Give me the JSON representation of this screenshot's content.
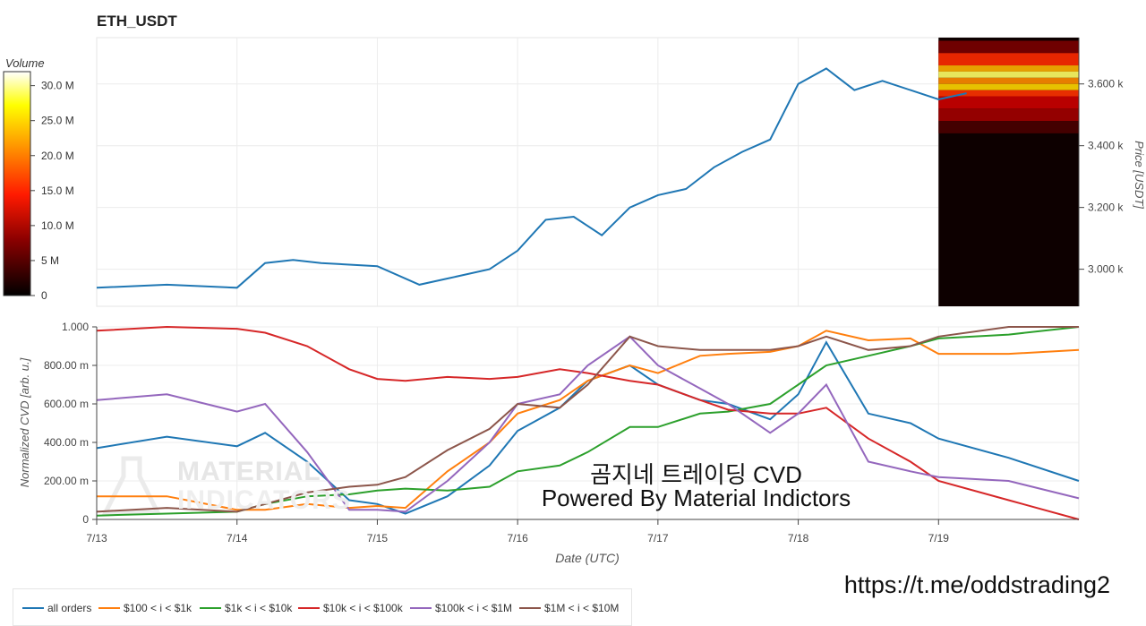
{
  "title": "ETH_USDT",
  "colorbar": {
    "label": "Volume",
    "ticks": [
      "30.0 M",
      "25.0 M",
      "20.0 M",
      "15.0 M",
      "10.0 M",
      "5 M",
      "0"
    ]
  },
  "overlay": {
    "line1": "곰지네 트레이딩 CVD",
    "line2": "Powered By Material Indictors",
    "url": "https://t.me/oddstrading2"
  },
  "watermark": {
    "line1": "MATERIAL",
    "line2": "INDICATORS"
  },
  "colors": {
    "all_orders": "#1f77b4",
    "s100_1k": "#ff7f0e",
    "s1k_10k": "#2ca02c",
    "s10k_100k": "#d62728",
    "s100k_1m": "#9467bd",
    "s1m_10m": "#8c564b"
  },
  "legend": {
    "items": [
      {
        "key": "all_orders",
        "label": "all orders"
      },
      {
        "key": "s100_1k",
        "label": "$100 < i < $1k"
      },
      {
        "key": "s1k_10k",
        "label": "$1k < i < $10k"
      },
      {
        "key": "s10k_100k",
        "label": "$10k < i < $100k"
      },
      {
        "key": "s100k_1m",
        "label": "$100k < i < $1M"
      },
      {
        "key": "s1m_10m",
        "label": "$1M < i < $10M"
      }
    ]
  },
  "chart_data": [
    {
      "type": "line",
      "ylabel": "Price [USDT]",
      "ylim": [
        2880,
        3750
      ],
      "yticks": [
        3000,
        3200,
        3400,
        3600
      ],
      "ytick_labels": [
        "3.000 k",
        "3.200 k",
        "3.400 k",
        "3.600 k"
      ],
      "xlim": [
        0,
        7
      ],
      "x": [
        0.0,
        0.5,
        1.0,
        1.2,
        1.4,
        1.6,
        2.0,
        2.3,
        2.5,
        2.8,
        3.0,
        3.2,
        3.4,
        3.6,
        3.8,
        4.0,
        4.2,
        4.4,
        4.6,
        4.8,
        5.0,
        5.2,
        5.4,
        5.6,
        5.8,
        6.0,
        6.2
      ],
      "series": [
        {
          "key": "all_orders",
          "values": [
            2940,
            2950,
            2940,
            3020,
            3030,
            3020,
            3010,
            2950,
            2970,
            3000,
            3060,
            3160,
            3170,
            3110,
            3200,
            3240,
            3260,
            3330,
            3380,
            3420,
            3600,
            3650,
            3580,
            3610,
            3580,
            3550,
            3570
          ]
        }
      ],
      "heatmap": {
        "x_range": [
          6.0,
          7.0
        ],
        "volume_range": [
          0,
          30000000
        ]
      }
    },
    {
      "type": "line",
      "xlabel": "Date (UTC)",
      "ylabel": "Normalized CVD [arb. u.]",
      "ylim": [
        0,
        1
      ],
      "yticks": [
        0,
        0.2,
        0.4,
        0.6,
        0.8,
        1.0
      ],
      "ytick_labels": [
        "0",
        "200.00 m",
        "400.00 m",
        "600.00 m",
        "800.00 m",
        "1.000"
      ],
      "xlim": [
        0,
        7
      ],
      "xticks": [
        0,
        1,
        2,
        3,
        4,
        5,
        6
      ],
      "xtick_labels": [
        "7/13",
        "7/14",
        "7/15",
        "7/16",
        "7/17",
        "7/18",
        "7/19"
      ],
      "x": [
        0.0,
        0.5,
        1.0,
        1.2,
        1.5,
        1.8,
        2.0,
        2.2,
        2.5,
        2.8,
        3.0,
        3.3,
        3.5,
        3.8,
        4.0,
        4.3,
        4.5,
        4.8,
        5.0,
        5.2,
        5.5,
        5.8,
        6.0,
        6.5,
        7.0
      ],
      "series": [
        {
          "key": "all_orders",
          "values": [
            0.37,
            0.43,
            0.38,
            0.45,
            0.3,
            0.1,
            0.08,
            0.03,
            0.12,
            0.28,
            0.46,
            0.58,
            0.72,
            0.8,
            0.7,
            0.62,
            0.6,
            0.52,
            0.65,
            0.92,
            0.55,
            0.5,
            0.42,
            0.32,
            0.2
          ]
        },
        {
          "key": "s100_1k",
          "values": [
            0.12,
            0.12,
            0.05,
            0.05,
            0.08,
            0.06,
            0.07,
            0.06,
            0.25,
            0.4,
            0.55,
            0.62,
            0.72,
            0.8,
            0.76,
            0.85,
            0.86,
            0.87,
            0.9,
            0.98,
            0.93,
            0.94,
            0.86,
            0.86,
            0.88
          ]
        },
        {
          "key": "s1k_10k",
          "values": [
            0.02,
            0.03,
            0.04,
            0.08,
            0.12,
            0.13,
            0.15,
            0.16,
            0.15,
            0.17,
            0.25,
            0.28,
            0.35,
            0.48,
            0.48,
            0.55,
            0.56,
            0.6,
            0.7,
            0.8,
            0.85,
            0.9,
            0.94,
            0.96,
            1.0
          ]
        },
        {
          "key": "s10k_100k",
          "values": [
            0.98,
            1.0,
            0.99,
            0.97,
            0.9,
            0.78,
            0.73,
            0.72,
            0.74,
            0.73,
            0.74,
            0.78,
            0.76,
            0.72,
            0.7,
            0.62,
            0.57,
            0.55,
            0.55,
            0.58,
            0.42,
            0.3,
            0.2,
            0.1,
            0.0
          ]
        },
        {
          "key": "s100k_1m",
          "values": [
            0.62,
            0.65,
            0.56,
            0.6,
            0.35,
            0.05,
            0.05,
            0.04,
            0.2,
            0.4,
            0.6,
            0.65,
            0.8,
            0.95,
            0.8,
            0.68,
            0.6,
            0.45,
            0.55,
            0.7,
            0.3,
            0.25,
            0.22,
            0.2,
            0.11
          ]
        },
        {
          "key": "s1m_10m",
          "values": [
            0.04,
            0.06,
            0.04,
            0.08,
            0.14,
            0.17,
            0.18,
            0.22,
            0.36,
            0.47,
            0.6,
            0.58,
            0.7,
            0.95,
            0.9,
            0.88,
            0.88,
            0.88,
            0.9,
            0.95,
            0.88,
            0.9,
            0.95,
            1.0,
            1.0
          ]
        }
      ]
    }
  ]
}
